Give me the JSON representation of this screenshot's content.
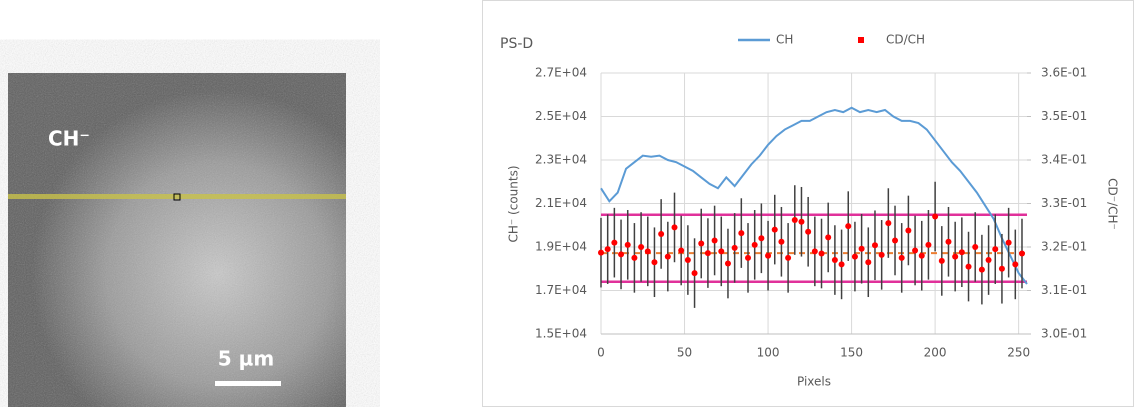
{
  "image": {
    "label": "CH⁻",
    "scale_bar": "5 µm"
  },
  "chart_data": {
    "type": "line",
    "title": "PS-D",
    "x_label": "Pixels",
    "y_label": "CH⁻ (counts)",
    "y2_label": "CD⁻/CH⁻",
    "xlim": [
      0,
      255
    ],
    "xticks": [
      0,
      50,
      100,
      150,
      200,
      250
    ],
    "ylim": [
      15000,
      27000
    ],
    "yticks": [
      {
        "value": 15000,
        "label": "1.5E+04"
      },
      {
        "value": 17000,
        "label": "1.7E+04"
      },
      {
        "value": 19000,
        "label": "1.9E+04"
      },
      {
        "value": 21000,
        "label": "2.1E+04"
      },
      {
        "value": 23000,
        "label": "2.3E+04"
      },
      {
        "value": 25000,
        "label": "2.5E+04"
      },
      {
        "value": 27000,
        "label": "2.7E+04"
      }
    ],
    "y2lim": [
      0.3,
      0.36
    ],
    "y2ticks": [
      {
        "value": 0.3,
        "label": "3.0E-01"
      },
      {
        "value": 0.31,
        "label": "3.1E-01"
      },
      {
        "value": 0.32,
        "label": "3.2E-01"
      },
      {
        "value": 0.33,
        "label": "3.3E-01"
      },
      {
        "value": 0.34,
        "label": "3.4E-01"
      },
      {
        "value": 0.35,
        "label": "3.5E-01"
      },
      {
        "value": 0.36,
        "label": "3.6E-01"
      }
    ],
    "grid": true,
    "legend": "top",
    "series": [
      {
        "name": "CH",
        "type": "line",
        "axis": "y",
        "color": "#5b9bd5",
        "x": [
          0,
          5,
          10,
          15,
          20,
          25,
          30,
          35,
          40,
          45,
          50,
          55,
          60,
          65,
          70,
          75,
          80,
          85,
          90,
          95,
          100,
          105,
          110,
          115,
          120,
          125,
          130,
          135,
          140,
          145,
          150,
          155,
          160,
          165,
          170,
          175,
          180,
          185,
          190,
          195,
          200,
          205,
          210,
          215,
          220,
          225,
          230,
          235,
          240,
          245,
          250,
          255
        ],
        "values": [
          21700,
          21100,
          21500,
          22600,
          22900,
          23200,
          23150,
          23200,
          23000,
          22900,
          22700,
          22500,
          22200,
          21900,
          21700,
          22200,
          21800,
          22300,
          22800,
          23200,
          23700,
          24100,
          24400,
          24600,
          24800,
          24800,
          25000,
          25200,
          25300,
          25200,
          25400,
          25200,
          25300,
          25200,
          25300,
          25000,
          24800,
          24800,
          24700,
          24400,
          23900,
          23400,
          22900,
          22500,
          22000,
          21500,
          20900,
          20300,
          19400,
          18600,
          17800,
          17300
        ]
      },
      {
        "name": "CD/CH",
        "type": "scatter",
        "axis": "y2",
        "color": "#ff0000",
        "error_color": "#404040",
        "error": 0.008,
        "x": [
          0,
          4,
          8,
          12,
          16,
          20,
          24,
          28,
          32,
          36,
          40,
          44,
          48,
          52,
          56,
          60,
          64,
          68,
          72,
          76,
          80,
          84,
          88,
          92,
          96,
          100,
          104,
          108,
          112,
          116,
          120,
          124,
          128,
          132,
          136,
          140,
          144,
          148,
          152,
          156,
          160,
          164,
          168,
          172,
          176,
          180,
          184,
          188,
          192,
          196,
          200,
          204,
          208,
          212,
          216,
          220,
          224,
          228,
          232,
          236,
          240,
          244,
          248,
          252
        ],
        "values": [
          0.3187,
          0.3195,
          0.321,
          0.3183,
          0.3205,
          0.3175,
          0.32,
          0.319,
          0.3165,
          0.323,
          0.3178,
          0.3245,
          0.3192,
          0.317,
          0.314,
          0.3208,
          0.3186,
          0.3215,
          0.319,
          0.3162,
          0.3198,
          0.3232,
          0.3175,
          0.3205,
          0.322,
          0.318,
          0.324,
          0.3212,
          0.3175,
          0.3262,
          0.3258,
          0.3235,
          0.319,
          0.3185,
          0.3222,
          0.317,
          0.316,
          0.3248,
          0.3178,
          0.3196,
          0.3165,
          0.3204,
          0.3182,
          0.3255,
          0.3215,
          0.3175,
          0.3238,
          0.3192,
          0.318,
          0.3205,
          0.327,
          0.3168,
          0.3212,
          0.3178,
          0.3188,
          0.3155,
          0.32,
          0.3148,
          0.317,
          0.3195,
          0.315,
          0.321,
          0.316,
          0.3185
        ]
      }
    ],
    "reference_lines": [
      {
        "value": 0.3274,
        "axis": "y2",
        "color": "#e0309a",
        "dashed": false
      },
      {
        "value": 0.312,
        "axis": "y2",
        "color": "#e0309a",
        "dashed": false
      },
      {
        "value": 0.3186,
        "axis": "y2",
        "color": "#ed7d31",
        "dashed": true
      }
    ]
  }
}
